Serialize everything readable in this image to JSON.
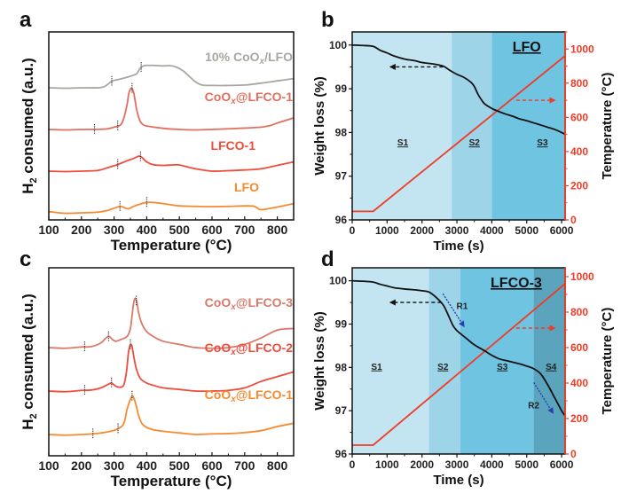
{
  "chart_data": [
    {
      "id": "a",
      "type": "line",
      "panel_letter": "a",
      "title": "",
      "xlabel": "Temperature (°C)",
      "ylabel_main": "H",
      "ylabel_sub": "2",
      "ylabel_rest": " consumed (a.u.)",
      "xlim": [
        100,
        850
      ],
      "xticks": [
        100,
        200,
        300,
        400,
        500,
        600,
        700,
        800
      ],
      "grid": false,
      "series": [
        {
          "name": "10% CoOx/LFO",
          "label_main": "10% CoO",
          "label_sub": "x",
          "label_rest": "/LFO",
          "color": "#a9a6a0",
          "offset": 3.0,
          "x": [
            100,
            150,
            200,
            250,
            270,
            285,
            295,
            310,
            330,
            350,
            360,
            370,
            380,
            390,
            400,
            420,
            450,
            470,
            490,
            510,
            530,
            550,
            570,
            600,
            650,
            700,
            750,
            800,
            850
          ],
          "y": [
            0,
            -0.02,
            0,
            0,
            0.05,
            0.2,
            0.3,
            0.35,
            0.42,
            0.5,
            0.55,
            0.62,
            0.85,
            0.95,
            0.97,
            0.97,
            0.95,
            0.96,
            0.9,
            0.75,
            0.5,
            0.25,
            0.12,
            0.1,
            0.1,
            0.12,
            0.2,
            0.3,
            0.4
          ],
          "markers": [
            293,
            383
          ]
        },
        {
          "name": "CoOx@LFCO-1",
          "label_main": "CoO",
          "label_sub": "x",
          "label_rest": "@LFCO-1",
          "color": "#e06f5e",
          "offset": 2.0,
          "x": [
            100,
            150,
            200,
            240,
            280,
            300,
            320,
            330,
            340,
            345,
            350,
            355,
            360,
            365,
            370,
            380,
            390,
            400,
            450,
            500,
            550,
            600,
            650,
            700,
            750,
            780,
            800,
            850
          ],
          "y": [
            0,
            -0.02,
            0,
            0,
            0.03,
            0.1,
            0.2,
            0.5,
            1.1,
            1.55,
            1.75,
            1.78,
            1.6,
            1.2,
            0.8,
            0.35,
            0.2,
            0.15,
            0.05,
            0.0,
            -0.02,
            0,
            0.03,
            0.06,
            0.1,
            0.18,
            0.28,
            0.5
          ],
          "markers": [
            240,
            311,
            355
          ]
        },
        {
          "name": "LFCO-1",
          "label_main": "LFCO-1",
          "label_sub": "",
          "label_rest": "",
          "color": "#ef4c3c",
          "offset": 1.0,
          "x": [
            100,
            150,
            200,
            250,
            280,
            310,
            340,
            360,
            375,
            385,
            400,
            420,
            450,
            480,
            500,
            520,
            550,
            600,
            650,
            700,
            750,
            800,
            850
          ],
          "y": [
            0,
            -0.02,
            0,
            0.03,
            0.15,
            0.28,
            0.45,
            0.55,
            0.65,
            0.6,
            0.4,
            0.28,
            0.25,
            0.27,
            0.27,
            0.2,
            0.1,
            0.0,
            0.02,
            0.05,
            0.1,
            0.25,
            0.4
          ],
          "markers": [
            311,
            381
          ]
        },
        {
          "name": "LFO",
          "label_main": "LFO",
          "label_sub": "",
          "label_rest": "",
          "color": "#f78a2e",
          "offset": 0.0,
          "x": [
            100,
            150,
            200,
            250,
            280,
            300,
            320,
            335,
            345,
            360,
            380,
            400,
            420,
            450,
            500,
            550,
            600,
            650,
            700,
            730,
            745,
            760,
            800,
            850
          ],
          "y": [
            0.05,
            -0.02,
            0,
            0.03,
            0.1,
            0.2,
            0.28,
            0.2,
            0.18,
            0.28,
            0.38,
            0.45,
            0.45,
            0.4,
            0.3,
            0.28,
            0.27,
            0.28,
            0.3,
            0.28,
            0.15,
            0.15,
            0.25,
            0.4
          ],
          "markers": [
            318,
            400
          ]
        }
      ]
    },
    {
      "id": "b",
      "type": "line",
      "panel_letter": "b",
      "xlabel": "Time (s)",
      "ylabel": "Weight loss (%)",
      "ylabel_right": "Temperature (°C)",
      "xlim": [
        0,
        6100
      ],
      "ylim": [
        96,
        100.3
      ],
      "ylim_right": [
        0,
        1100
      ],
      "xticks": [
        0,
        1000,
        2000,
        3000,
        4000,
        5000,
        6000
      ],
      "yticks": [
        96,
        97,
        98,
        99,
        100
      ],
      "yticks_right": [
        0,
        200,
        400,
        600,
        800,
        1000
      ],
      "grid": false,
      "sample_label": "LFO",
      "stages": [
        {
          "label": "S1",
          "start": 0,
          "end": 2850,
          "color": "#c3e5f1",
          "label_x": 1450
        },
        {
          "label": "S2",
          "start": 2850,
          "end": 4000,
          "color": "#9dd4e8",
          "label_x": 3500
        },
        {
          "label": "S3",
          "start": 4000,
          "end": 6100,
          "color": "#6fc4e2",
          "label_x": 5450
        }
      ],
      "stage_label_y": 97.7,
      "weight_series": {
        "name": "Weight loss",
        "color": "#111111",
        "x": [
          0,
          300,
          600,
          800,
          1000,
          1200,
          1500,
          1800,
          2000,
          2300,
          2600,
          2800,
          3000,
          3200,
          3400,
          3500,
          3600,
          3700,
          3800,
          4000,
          4200,
          4400,
          4600,
          4800,
          5000,
          5200,
          5400,
          5600,
          5800,
          6000,
          6100
        ],
        "y": [
          100,
          99.99,
          99.97,
          99.88,
          99.82,
          99.75,
          99.68,
          99.64,
          99.6,
          99.57,
          99.52,
          99.42,
          99.33,
          99.26,
          99.15,
          99.05,
          98.88,
          98.75,
          98.65,
          98.55,
          98.48,
          98.42,
          98.37,
          98.31,
          98.27,
          98.22,
          98.17,
          98.12,
          98.07,
          98.0,
          97.96
        ]
      },
      "temp_series": {
        "name": "Temperature",
        "color": "#f23a24",
        "x": [
          0,
          600,
          6100
        ],
        "y": [
          50,
          50,
          960
        ]
      },
      "arrow_left": {
        "x_from": 2600,
        "x_to": 1100,
        "y": 99.5,
        "color": "#111111"
      },
      "arrow_right": {
        "x_from": 4700,
        "x_to": 5800,
        "y_right": 700,
        "color": "#f23a24"
      }
    },
    {
      "id": "c",
      "type": "line",
      "panel_letter": "c",
      "xlabel": "Temperature (°C)",
      "ylabel_main": "H",
      "ylabel_sub": "2",
      "ylabel_rest": " consumed (a.u.)",
      "xlim": [
        100,
        850
      ],
      "xticks": [
        100,
        200,
        300,
        400,
        500,
        600,
        700,
        800
      ],
      "grid": false,
      "series": [
        {
          "name": "CoOx@LFCO-3",
          "label_main": "CoO",
          "label_sub": "x",
          "label_rest": "@LFCO-3",
          "color": "#d9796a",
          "offset": 2.0,
          "x": [
            100,
            150,
            200,
            230,
            260,
            275,
            285,
            295,
            305,
            320,
            340,
            350,
            355,
            360,
            365,
            370,
            375,
            385,
            400,
            420,
            450,
            500,
            550,
            600,
            650,
            700,
            750,
            800,
            850
          ],
          "y": [
            0,
            -0.02,
            0.02,
            0.03,
            0.15,
            0.3,
            0.35,
            0.25,
            0.2,
            0.25,
            0.35,
            0.6,
            1.0,
            1.4,
            1.55,
            1.4,
            1.1,
            0.75,
            0.5,
            0.35,
            0.2,
            0.1,
            0.0,
            -0.02,
            0.0,
            0.1,
            0.3,
            0.55,
            0.6
          ],
          "markers": [
            210,
            283,
            368
          ]
        },
        {
          "name": "CoOx@LFCO-2",
          "label_main": "CoO",
          "label_sub": "x",
          "label_rest": "@LFCO-2",
          "color": "#ef4c3c",
          "offset": 1.0,
          "x": [
            100,
            150,
            200,
            230,
            260,
            280,
            292,
            305,
            320,
            330,
            338,
            344,
            350,
            355,
            360,
            368,
            380,
            400,
            420,
            450,
            500,
            550,
            600,
            650,
            700,
            750,
            800,
            850
          ],
          "y": [
            0,
            -0.02,
            0.02,
            0.03,
            0.1,
            0.2,
            0.25,
            0.15,
            0.12,
            0.2,
            0.6,
            1.2,
            1.45,
            1.4,
            1.1,
            0.7,
            0.4,
            0.25,
            0.18,
            0.1,
            0.05,
            0.0,
            0.0,
            0.02,
            0.1,
            0.3,
            0.45,
            0.6
          ],
          "markers": [
            210,
            292,
            350
          ]
        },
        {
          "name": "CoOx@LFCO-1",
          "label_main": "CoO",
          "label_sub": "x",
          "label_rest": "@LFCO-1",
          "color": "#f78a2e",
          "offset": 0.0,
          "x": [
            100,
            150,
            200,
            235,
            280,
            312,
            330,
            340,
            350,
            355,
            360,
            368,
            375,
            385,
            400,
            420,
            450,
            500,
            550,
            600,
            650,
            700,
            750,
            800,
            850
          ],
          "y": [
            0,
            -0.02,
            0,
            0.02,
            0.08,
            0.18,
            0.35,
            0.8,
            1.1,
            1.2,
            1.15,
            0.9,
            0.6,
            0.35,
            0.22,
            0.15,
            0.1,
            0.05,
            0.0,
            0.02,
            0.03,
            0.06,
            0.12,
            0.25,
            0.35
          ],
          "markers": [
            235,
            312,
            355
          ]
        }
      ]
    },
    {
      "id": "d",
      "type": "line",
      "panel_letter": "d",
      "xlabel": "Time (s)",
      "ylabel": "Weight loss (%)",
      "ylabel_right": "Temperature (°C)",
      "xlim": [
        0,
        6100
      ],
      "ylim": [
        96,
        100.3
      ],
      "ylim_right": [
        0,
        1050
      ],
      "xticks": [
        0,
        1000,
        2000,
        3000,
        4000,
        5000,
        6000
      ],
      "yticks": [
        96,
        97,
        98,
        99,
        100
      ],
      "yticks_right": [
        0,
        200,
        400,
        600,
        800,
        1000
      ],
      "grid": false,
      "sample_label": "LFCO-3",
      "stages": [
        {
          "label": "S1",
          "start": 0,
          "end": 2200,
          "color": "#c3e5f1",
          "label_x": 700
        },
        {
          "label": "S2",
          "start": 2200,
          "end": 3100,
          "color": "#9dd4e8",
          "label_x": 2600
        },
        {
          "label": "S3",
          "start": 3100,
          "end": 5200,
          "color": "#6fc4e2",
          "label_x": 4300
        },
        {
          "label": "S4",
          "start": 5200,
          "end": 6100,
          "color": "#5ba4bd",
          "label_x": 5700
        }
      ],
      "stage_label_y": 97.95,
      "weight_series": {
        "name": "Weight loss",
        "color": "#111111",
        "x": [
          0,
          300,
          600,
          800,
          1000,
          1200,
          1500,
          1800,
          2000,
          2200,
          2400,
          2600,
          2700,
          2800,
          2900,
          3000,
          3100,
          3300,
          3500,
          3800,
          4000,
          4200,
          4500,
          4800,
          5000,
          5200,
          5400,
          5600,
          5800,
          6000,
          6100
        ],
        "y": [
          100,
          99.99,
          99.97,
          99.92,
          99.88,
          99.84,
          99.81,
          99.79,
          99.77,
          99.74,
          99.62,
          99.45,
          99.3,
          99.12,
          98.95,
          98.85,
          98.78,
          98.65,
          98.52,
          98.38,
          98.28,
          98.2,
          98.14,
          98.08,
          98.03,
          97.97,
          97.85,
          97.6,
          97.3,
          97.0,
          96.88
        ]
      },
      "temp_series": {
        "name": "Temperature",
        "color": "#f23a24",
        "x": [
          0,
          600,
          6100
        ],
        "y": [
          50,
          50,
          960
        ]
      },
      "arrow_left": {
        "x_from": 2550,
        "x_to": 1100,
        "y": 99.5,
        "color": "#111111"
      },
      "arrow_right": {
        "x_from": 4700,
        "x_to": 5800,
        "y_right": 710,
        "color": "#f23a24"
      },
      "rate_arrows": [
        {
          "label": "R1",
          "x_from": 2600,
          "y_from": 99.7,
          "x_to": 3200,
          "y_to": 98.95,
          "label_x": 3150,
          "label_y": 99.35,
          "color": "#2a3fb0"
        },
        {
          "label": "R2",
          "x_from": 5200,
          "y_from": 97.65,
          "x_to": 5750,
          "y_to": 96.95,
          "label_x": 5200,
          "label_y": 97.05,
          "color": "#2a3fb0"
        }
      ]
    }
  ]
}
